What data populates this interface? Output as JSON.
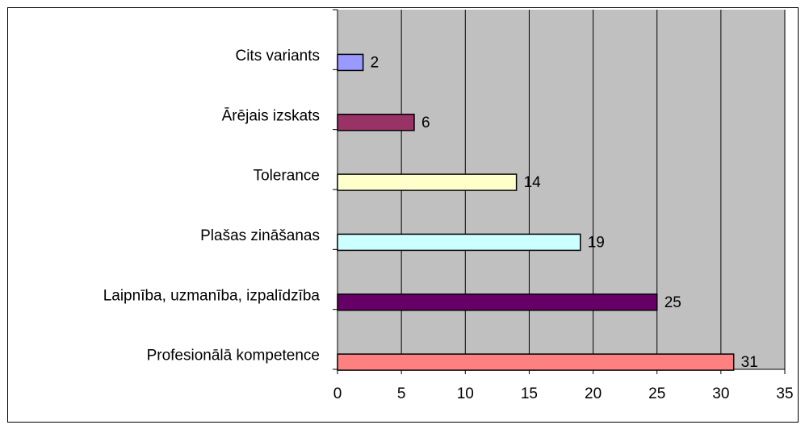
{
  "chart_data": {
    "type": "bar",
    "orientation": "horizontal",
    "categories": [
      "Cits variants",
      "Ārējais izskats",
      "Tolerance",
      "Plašas zināšanas",
      "Laipnība, uzmanība, izpalīdzība",
      "Profesionālā kompetence"
    ],
    "values": [
      2,
      6,
      14,
      19,
      25,
      31
    ],
    "colors": [
      "#9999ff",
      "#993366",
      "#ffffcc",
      "#ccffff",
      "#660066",
      "#ff8080"
    ],
    "xlim": [
      0,
      35
    ],
    "xticks": [
      0,
      5,
      10,
      15,
      20,
      25,
      30,
      35
    ],
    "grid": true
  }
}
